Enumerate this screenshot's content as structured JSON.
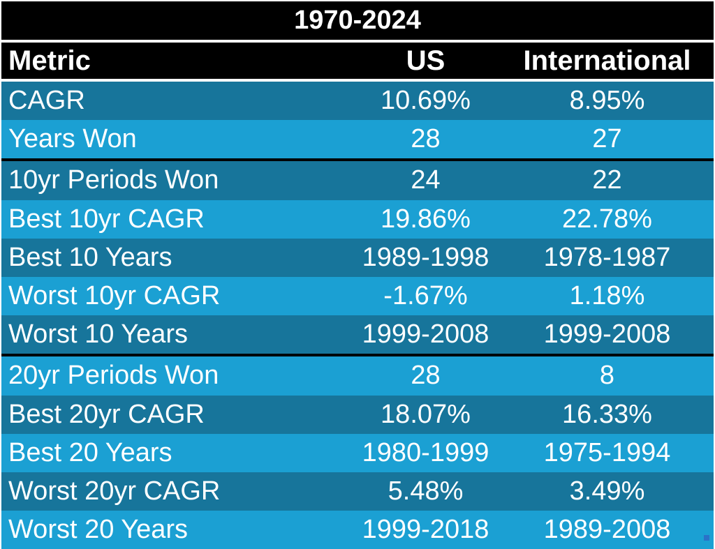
{
  "table": {
    "title": "1970-2024",
    "headers": [
      "Metric",
      "US",
      "International"
    ],
    "groups": [
      [
        {
          "metric": "CAGR",
          "us": "10.69%",
          "intl": "8.95%"
        },
        {
          "metric": "Years Won",
          "us": "28",
          "intl": "27"
        }
      ],
      [
        {
          "metric": "10yr Periods Won",
          "us": "24",
          "intl": "22"
        },
        {
          "metric": "Best 10yr CAGR",
          "us": "19.86%",
          "intl": "22.78%"
        },
        {
          "metric": "Best 10 Years",
          "us": "1989-1998",
          "intl": "1978-1987"
        },
        {
          "metric": "Worst 10yr CAGR",
          "us": "-1.67%",
          "intl": "1.18%"
        },
        {
          "metric": "Worst 10 Years",
          "us": "1999-2008",
          "intl": "1999-2008"
        }
      ],
      [
        {
          "metric": "20yr Periods Won",
          "us": "28",
          "intl": "8"
        },
        {
          "metric": "Best 20yr CAGR",
          "us": "18.07%",
          "intl": "16.33%"
        },
        {
          "metric": "Best 20 Years",
          "us": "1980-1999",
          "intl": "1975-1994"
        },
        {
          "metric": "Worst 20yr CAGR",
          "us": "5.48%",
          "intl": "3.49%"
        },
        {
          "metric": "Worst 20 Years",
          "us": "1999-2018",
          "intl": "1989-2008"
        }
      ]
    ]
  },
  "colors": {
    "header_bg": "#000000",
    "row_dark": "#17759b",
    "row_light": "#1ba0d3",
    "text": "#ffffff"
  }
}
